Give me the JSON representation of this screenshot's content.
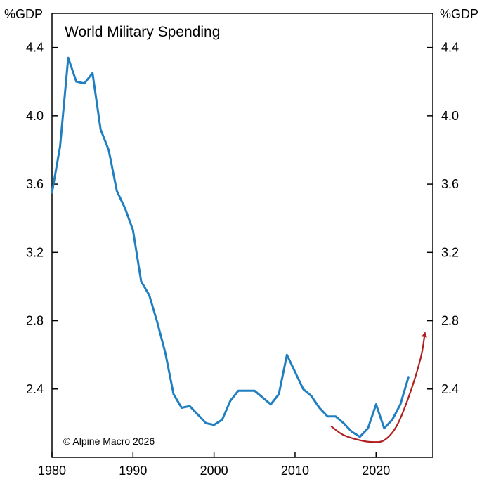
{
  "chart_data": {
    "type": "line",
    "title": "World Military Spending",
    "credit": "© Alpine Macro 2026",
    "y_unit_left": "%GDP",
    "y_unit_right": "%GDP",
    "xlim": [
      1980,
      2027
    ],
    "ylim": [
      2.0,
      4.6
    ],
    "x_ticks": [
      1980,
      1990,
      2000,
      2010,
      2020
    ],
    "x_tick_labels": [
      "1980",
      "1990",
      "2000",
      "2010",
      "2020"
    ],
    "y_ticks": [
      2.4,
      2.8,
      3.2,
      3.6,
      4.0,
      4.4
    ],
    "y_tick_labels": [
      "2.4",
      "2.8",
      "3.2",
      "3.6",
      "4.0",
      "4.4"
    ],
    "grid": false,
    "series": [
      {
        "name": "World Military Spending",
        "color": "#1f7fc0",
        "x": [
          1980,
          1981,
          1982,
          1983,
          1984,
          1985,
          1986,
          1987,
          1988,
          1989,
          1990,
          1991,
          1992,
          1993,
          1994,
          1995,
          1996,
          1997,
          1998,
          1999,
          2000,
          2001,
          2002,
          2003,
          2004,
          2005,
          2006,
          2007,
          2008,
          2009,
          2010,
          2011,
          2012,
          2013,
          2014,
          2015,
          2016,
          2017,
          2018,
          2019,
          2020,
          2021,
          2022,
          2023,
          2024
        ],
        "values": [
          3.55,
          3.82,
          4.34,
          4.2,
          4.19,
          4.25,
          3.92,
          3.8,
          3.56,
          3.46,
          3.33,
          3.03,
          2.95,
          2.79,
          2.61,
          2.37,
          2.29,
          2.3,
          2.25,
          2.2,
          2.19,
          2.22,
          2.33,
          2.39,
          2.39,
          2.39,
          2.35,
          2.31,
          2.37,
          2.6,
          2.5,
          2.4,
          2.36,
          2.29,
          2.24,
          2.24,
          2.2,
          2.15,
          2.12,
          2.17,
          2.31,
          2.17,
          2.22,
          2.31,
          2.47
        ]
      }
    ],
    "annotations": [
      {
        "type": "curved-arrow",
        "color": "#b01e1e",
        "description": "upward trend arrow",
        "x": [
          2014.5,
          2016,
          2018,
          2019.5,
          2021,
          2022.5,
          2024,
          2025.5,
          2026
        ],
        "values": [
          2.18,
          2.13,
          2.1,
          2.09,
          2.1,
          2.18,
          2.35,
          2.58,
          2.72
        ]
      }
    ]
  }
}
